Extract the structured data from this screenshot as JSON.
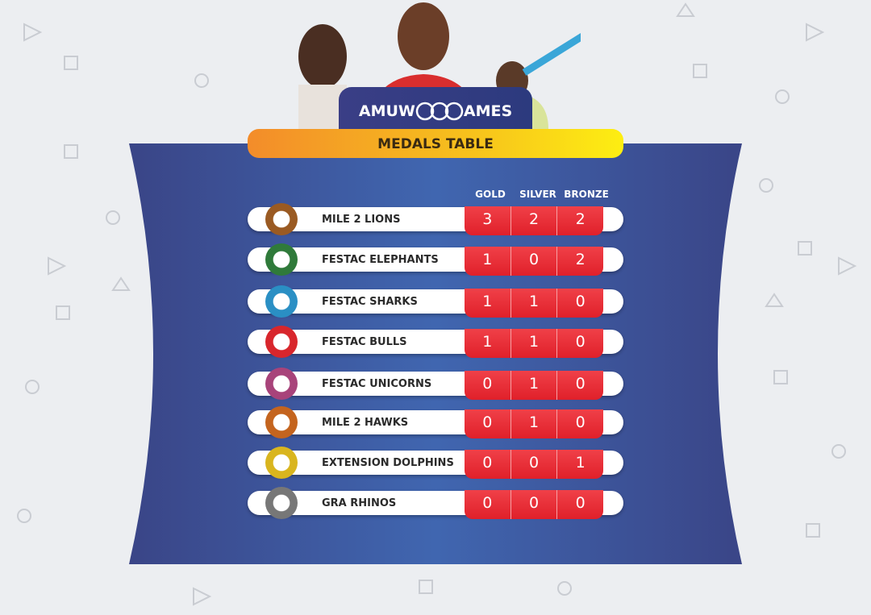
{
  "logo": {
    "text": "AMUWO GAMES",
    "left": "AMUW",
    "right": "AMES"
  },
  "banner": {
    "title": "MEDALS TABLE"
  },
  "columns": [
    "GOLD",
    "SILVER",
    "BRONZE"
  ],
  "colors": {
    "panel": "#3f5aa6",
    "medal_cell": "#e62a33",
    "banner_start": "#f38c2a",
    "banner_end": "#fdee12"
  },
  "rows": [
    {
      "team": "MILE 2 LIONS",
      "gold": "3",
      "silver": "2",
      "bronze": "2",
      "logo_color": "#9a5a22"
    },
    {
      "team": "FESTAC ELEPHANTS",
      "gold": "1",
      "silver": "0",
      "bronze": "2",
      "logo_color": "#2f7a3a"
    },
    {
      "team": "FESTAC SHARKS",
      "gold": "1",
      "silver": "1",
      "bronze": "0",
      "logo_color": "#2a8fc4"
    },
    {
      "team": "FESTAC BULLS",
      "gold": "1",
      "silver": "1",
      "bronze": "0",
      "logo_color": "#d8262c"
    },
    {
      "team": "FESTAC UNICORNS",
      "gold": "0",
      "silver": "1",
      "bronze": "0",
      "logo_color": "#a8437a"
    },
    {
      "team": "MILE 2 HAWKS",
      "gold": "0",
      "silver": "1",
      "bronze": "0",
      "logo_color": "#c4641e"
    },
    {
      "team": "EXTENSION DOLPHINS",
      "gold": "0",
      "silver": "0",
      "bronze": "1",
      "logo_color": "#d9b51e"
    },
    {
      "team": "GRA RHINOS",
      "gold": "0",
      "silver": "0",
      "bronze": "0",
      "logo_color": "#777777"
    }
  ]
}
